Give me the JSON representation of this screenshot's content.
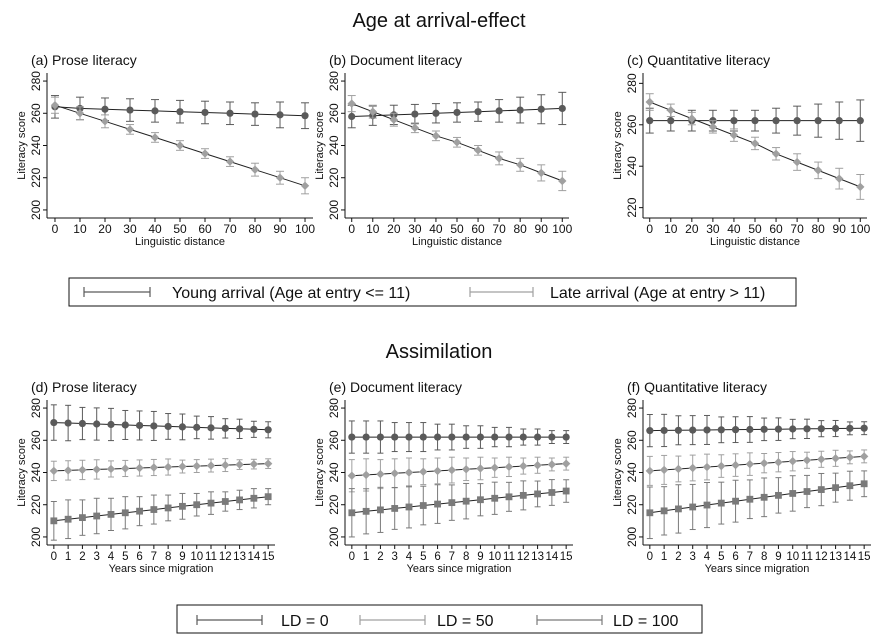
{
  "sections": [
    {
      "title": "Age at arrival-effect",
      "legend": [
        "Young arrival (Age at entry <= 11)",
        "Late arrival (Age at entry > 11)"
      ]
    },
    {
      "title": "Assimilation",
      "legend": [
        "LD = 0",
        "LD = 50",
        "LD = 100"
      ]
    }
  ],
  "chart_data": [
    {
      "type": "line",
      "title": "(a) Prose literacy",
      "xlabel": "Linguistic distance",
      "ylabel": "Literacy score",
      "x": [
        0,
        10,
        20,
        30,
        40,
        50,
        60,
        70,
        80,
        90,
        100
      ],
      "xticks": [
        "0",
        "10",
        "20",
        "30",
        "40",
        "50",
        "60",
        "70",
        "80",
        "90",
        "100"
      ],
      "yticks": [
        200,
        220,
        240,
        260,
        280
      ],
      "ylim": [
        195,
        285
      ],
      "series": [
        {
          "name": "Young arrival (Age at entry <= 11)",
          "color": "#5a5a5a",
          "marker": "circle",
          "values": [
            264,
            263,
            262.5,
            262,
            261.5,
            261,
            260.5,
            260,
            259.5,
            259,
            258.5
          ],
          "err": [
            7,
            7,
            7,
            7,
            7,
            7,
            7,
            7,
            7,
            8,
            8
          ]
        },
        {
          "name": "Late arrival (Age at entry > 11)",
          "color": "#a0a0a0",
          "marker": "diamond",
          "values": [
            265,
            260,
            255,
            250,
            245,
            240,
            235,
            230,
            225,
            220,
            215
          ],
          "err": [
            5,
            4,
            4,
            3,
            3,
            3,
            3,
            3,
            4,
            4,
            5
          ]
        }
      ]
    },
    {
      "type": "line",
      "title": "(b) Document literacy",
      "xlabel": "Linguistic distance",
      "ylabel": "Literacy score",
      "x": [
        0,
        10,
        20,
        30,
        40,
        50,
        60,
        70,
        80,
        90,
        100
      ],
      "xticks": [
        "0",
        "10",
        "20",
        "30",
        "40",
        "50",
        "60",
        "70",
        "80",
        "90",
        "100"
      ],
      "yticks": [
        200,
        220,
        240,
        260,
        280
      ],
      "ylim": [
        195,
        285
      ],
      "series": [
        {
          "name": "Young arrival (Age at entry <= 11)",
          "color": "#5a5a5a",
          "marker": "circle",
          "values": [
            258,
            258.5,
            259,
            259.5,
            260,
            260.5,
            261,
            261.5,
            262,
            262.5,
            263
          ],
          "err": [
            7,
            6,
            6,
            6,
            6,
            6,
            6,
            7,
            8,
            9,
            10
          ]
        },
        {
          "name": "Late arrival (Age at entry > 11)",
          "color": "#a0a0a0",
          "marker": "diamond",
          "values": [
            266,
            261,
            256,
            251,
            246,
            242,
            237,
            232,
            228,
            223,
            218
          ],
          "err": [
            5,
            4,
            4,
            3,
            3,
            3,
            3,
            4,
            4,
            5,
            6
          ]
        }
      ]
    },
    {
      "type": "line",
      "title": "(c) Quantitative literacy",
      "xlabel": "Linguistic distance",
      "ylabel": "Literacy score",
      "x": [
        0,
        10,
        20,
        30,
        40,
        50,
        60,
        70,
        80,
        90,
        100
      ],
      "xticks": [
        "0",
        "10",
        "20",
        "30",
        "40",
        "50",
        "60",
        "70",
        "80",
        "90",
        "100"
      ],
      "yticks": [
        220,
        240,
        260,
        280
      ],
      "ylim": [
        215,
        285
      ],
      "series": [
        {
          "name": "Young arrival (Age at entry <= 11)",
          "color": "#5a5a5a",
          "marker": "circle",
          "values": [
            262,
            262,
            262,
            262,
            262,
            262,
            262,
            262,
            262,
            262,
            262
          ],
          "err": [
            6,
            5,
            5,
            5,
            5,
            5,
            6,
            7,
            8,
            9,
            10
          ]
        },
        {
          "name": "Late arrival (Age at entry > 11)",
          "color": "#a0a0a0",
          "marker": "diamond",
          "values": [
            271,
            267,
            263,
            259,
            255,
            251,
            246,
            242,
            238,
            234,
            230
          ],
          "err": [
            4,
            3,
            3,
            3,
            3,
            3,
            3,
            4,
            4,
            5,
            6
          ]
        }
      ]
    },
    {
      "type": "line",
      "title": "(d) Prose literacy",
      "xlabel": "Years since migration",
      "ylabel": "Literacy score",
      "x": [
        0,
        1,
        2,
        3,
        4,
        5,
        6,
        7,
        8,
        9,
        10,
        11,
        12,
        13,
        14,
        15
      ],
      "xticks": [
        "0",
        "1",
        "2",
        "3",
        "4",
        "5",
        "6",
        "7",
        "8",
        "9",
        "10",
        "11",
        "12",
        "13",
        "14",
        "15"
      ],
      "yticks": [
        200,
        220,
        240,
        260,
        280
      ],
      "ylim": [
        195,
        285
      ],
      "series": [
        {
          "name": "LD = 0",
          "color": "#5a5a5a",
          "marker": "circle",
          "values": [
            271,
            270.7,
            270.4,
            270.1,
            269.8,
            269.5,
            269.2,
            268.9,
            268.6,
            268.3,
            268,
            267.7,
            267.4,
            267.1,
            266.8,
            266.5
          ],
          "err": [
            11,
            11,
            10,
            10,
            10,
            9,
            9,
            9,
            8,
            8,
            7,
            7,
            6,
            6,
            5,
            5
          ]
        },
        {
          "name": "LD = 50",
          "color": "#a0a0a0",
          "marker": "diamond",
          "values": [
            241,
            241.3,
            241.6,
            241.9,
            242.2,
            242.5,
            242.8,
            243.1,
            243.4,
            243.7,
            244,
            244.3,
            244.6,
            244.9,
            245.2,
            245.5
          ],
          "err": [
            6,
            6,
            6,
            6,
            5,
            5,
            5,
            5,
            5,
            4,
            4,
            4,
            4,
            3,
            3,
            3
          ]
        },
        {
          "name": "LD = 100",
          "color": "#7a7a7a",
          "marker": "square",
          "values": [
            210,
            211,
            212,
            213,
            214,
            215,
            216,
            217,
            218,
            219,
            220,
            221,
            222,
            223,
            224,
            225
          ],
          "err": [
            12,
            12,
            11,
            11,
            10,
            10,
            9,
            9,
            8,
            8,
            7,
            7,
            6,
            6,
            6,
            5
          ]
        }
      ]
    },
    {
      "type": "line",
      "title": "(e) Document literacy",
      "xlabel": "Years since migration",
      "ylabel": "Literacy score",
      "x": [
        0,
        1,
        2,
        3,
        4,
        5,
        6,
        7,
        8,
        9,
        10,
        11,
        12,
        13,
        14,
        15
      ],
      "xticks": [
        "0",
        "1",
        "2",
        "3",
        "4",
        "5",
        "6",
        "7",
        "8",
        "9",
        "10",
        "11",
        "12",
        "13",
        "14",
        "15"
      ],
      "yticks": [
        200,
        220,
        240,
        260,
        280
      ],
      "ylim": [
        195,
        285
      ],
      "series": [
        {
          "name": "LD = 0",
          "color": "#5a5a5a",
          "marker": "circle",
          "values": [
            262,
            262,
            262,
            262,
            262,
            262,
            262,
            262,
            262,
            262,
            262,
            262,
            262,
            262,
            262,
            262
          ],
          "err": [
            10,
            10,
            10,
            9,
            9,
            9,
            8,
            8,
            7,
            7,
            6,
            6,
            5,
            5,
            4,
            4
          ]
        },
        {
          "name": "LD = 50",
          "color": "#a0a0a0",
          "marker": "diamond",
          "values": [
            238,
            238.5,
            239,
            239.5,
            240,
            240.5,
            241,
            241.5,
            242,
            242.5,
            243,
            243.5,
            244,
            244.5,
            245,
            245.5
          ],
          "err": [
            10,
            10,
            9,
            9,
            9,
            8,
            8,
            8,
            7,
            7,
            6,
            6,
            5,
            5,
            4,
            4
          ]
        },
        {
          "name": "LD = 100",
          "color": "#7a7a7a",
          "marker": "square",
          "values": [
            215,
            215.9,
            216.8,
            217.7,
            218.6,
            219.5,
            220.4,
            221.3,
            222.2,
            223.1,
            224,
            224.9,
            225.8,
            226.7,
            227.6,
            228.5
          ],
          "err": [
            15,
            14,
            14,
            13,
            13,
            12,
            12,
            11,
            11,
            10,
            10,
            9,
            9,
            8,
            8,
            7
          ]
        }
      ]
    },
    {
      "type": "line",
      "title": "(f) Quantitative literacy",
      "xlabel": "Years since migration",
      "ylabel": "Literacy score",
      "x": [
        0,
        1,
        2,
        3,
        4,
        5,
        6,
        7,
        8,
        9,
        10,
        11,
        12,
        13,
        14,
        15
      ],
      "xticks": [
        "0",
        "1",
        "2",
        "3",
        "4",
        "5",
        "6",
        "7",
        "8",
        "9",
        "10",
        "11",
        "12",
        "13",
        "14",
        "15"
      ],
      "yticks": [
        200,
        220,
        240,
        260,
        280
      ],
      "ylim": [
        195,
        285
      ],
      "series": [
        {
          "name": "LD = 0",
          "color": "#5a5a5a",
          "marker": "circle",
          "values": [
            266,
            266.1,
            266.2,
            266.3,
            266.4,
            266.5,
            266.6,
            266.7,
            266.8,
            266.9,
            267,
            267.1,
            267.2,
            267.3,
            267.4,
            267.5
          ],
          "err": [
            10,
            10,
            9,
            9,
            9,
            8,
            8,
            8,
            7,
            7,
            6,
            6,
            5,
            5,
            4,
            4
          ]
        },
        {
          "name": "LD = 50",
          "color": "#a0a0a0",
          "marker": "diamond",
          "values": [
            241,
            241.6,
            242.2,
            242.8,
            243.4,
            244,
            244.6,
            245.2,
            245.8,
            246.4,
            247,
            247.6,
            248.2,
            248.8,
            249.4,
            250
          ],
          "err": [
            9,
            9,
            8,
            8,
            8,
            7,
            7,
            7,
            6,
            6,
            6,
            5,
            5,
            5,
            4,
            4
          ]
        },
        {
          "name": "LD = 100",
          "color": "#7a7a7a",
          "marker": "square",
          "values": [
            215,
            216.2,
            217.4,
            218.6,
            219.8,
            221,
            222.2,
            223.4,
            224.6,
            225.8,
            227,
            228.2,
            229.4,
            230.6,
            231.8,
            233
          ],
          "err": [
            16,
            15,
            15,
            14,
            14,
            13,
            13,
            12,
            12,
            11,
            11,
            10,
            10,
            9,
            9,
            8
          ]
        }
      ]
    }
  ]
}
